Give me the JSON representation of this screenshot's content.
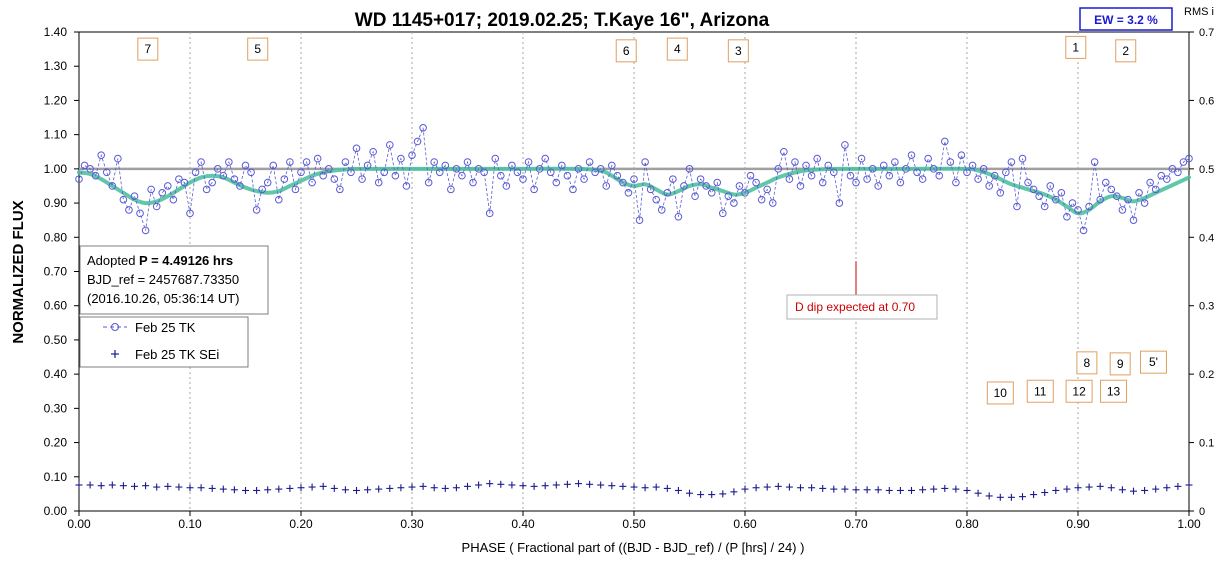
{
  "chart_data": {
    "type": "scatter",
    "title": "WD 1145+017; 2019.02.25; T.Kaye 16\", Arizona",
    "xlabel": "PHASE ( Fractional part of ((BJD - BJD_ref) / (P [hrs] / 24) )",
    "ylabel": "NORMALIZED FLUX",
    "y2label": "RMS i",
    "xlim": [
      0,
      1
    ],
    "ylim": [
      0,
      1.4
    ],
    "y2lim": [
      0,
      0.7
    ],
    "grid": "vertical",
    "x_ticks": [
      "0.00",
      "0.10",
      "0.20",
      "0.30",
      "0.40",
      "0.50",
      "0.60",
      "0.70",
      "0.80",
      "0.90",
      "1.00"
    ],
    "y_ticks": [
      "0.00",
      "0.10",
      "0.20",
      "0.30",
      "0.40",
      "0.50",
      "0.60",
      "0.70",
      "0.80",
      "0.90",
      "1.00",
      "1.10",
      "1.20",
      "1.30",
      "1.40"
    ],
    "y2_ticks": [
      "0",
      "0.1",
      "0.2",
      "0.3",
      "0.4",
      "0.5",
      "0.6",
      "0.7"
    ],
    "reference_line": 1.0,
    "ew_label": "EW =  3.2 %",
    "info_box": {
      "line1_prefix": "Adopted ",
      "line1_bold": "P = 4.49126 hrs",
      "line2": "BJD_ref = 2457687.73350",
      "line3": "(2016.10.26, 05:36:14 UT)"
    },
    "annotation": {
      "text": "D dip expected at 0.70",
      "x": 0.7,
      "y_from": 0.62,
      "y_to": 0.73,
      "color": "#cc0000"
    },
    "legend": {
      "placement": "left-middle",
      "entries": [
        "Feb 25 TK",
        "Feb 25 TK SEi"
      ]
    },
    "dip_labels": [
      {
        "text": "7",
        "x": 0.062,
        "y": 1.35
      },
      {
        "text": "5",
        "x": 0.161,
        "y": 1.35
      },
      {
        "text": "6",
        "x": 0.493,
        "y": 1.345
      },
      {
        "text": "4",
        "x": 0.539,
        "y": 1.35
      },
      {
        "text": "3",
        "x": 0.594,
        "y": 1.345
      },
      {
        "text": "1",
        "x": 0.898,
        "y": 1.355
      },
      {
        "text": "2",
        "x": 0.943,
        "y": 1.345
      },
      {
        "text": "8",
        "x": 0.908,
        "y": 0.433
      },
      {
        "text": "9",
        "x": 0.938,
        "y": 0.43
      },
      {
        "text": "5'",
        "x": 0.968,
        "y": 0.435
      },
      {
        "text": "10",
        "x": 0.83,
        "y": 0.345
      },
      {
        "text": "11",
        "x": 0.866,
        "y": 0.35
      },
      {
        "text": "12",
        "x": 0.901,
        "y": 0.35
      },
      {
        "text": "13",
        "x": 0.932,
        "y": 0.35
      }
    ],
    "series": [
      {
        "name": "Feb 25 TK",
        "color": "#5a5ad6",
        "marker": "open-circle",
        "line": "dashed",
        "x": [
          0.0,
          0.005,
          0.01,
          0.015,
          0.02,
          0.025,
          0.03,
          0.035,
          0.04,
          0.045,
          0.05,
          0.055,
          0.06,
          0.065,
          0.07,
          0.075,
          0.08,
          0.085,
          0.09,
          0.095,
          0.1,
          0.105,
          0.11,
          0.115,
          0.12,
          0.125,
          0.13,
          0.135,
          0.14,
          0.145,
          0.15,
          0.155,
          0.16,
          0.165,
          0.17,
          0.175,
          0.18,
          0.185,
          0.19,
          0.195,
          0.2,
          0.205,
          0.21,
          0.215,
          0.22,
          0.225,
          0.23,
          0.235,
          0.24,
          0.245,
          0.25,
          0.255,
          0.26,
          0.265,
          0.27,
          0.275,
          0.28,
          0.285,
          0.29,
          0.295,
          0.3,
          0.305,
          0.31,
          0.315,
          0.32,
          0.325,
          0.33,
          0.335,
          0.34,
          0.345,
          0.35,
          0.355,
          0.36,
          0.365,
          0.37,
          0.375,
          0.38,
          0.385,
          0.39,
          0.395,
          0.4,
          0.405,
          0.41,
          0.415,
          0.42,
          0.425,
          0.43,
          0.435,
          0.44,
          0.445,
          0.45,
          0.455,
          0.46,
          0.465,
          0.47,
          0.475,
          0.48,
          0.485,
          0.49,
          0.495,
          0.5,
          0.505,
          0.51,
          0.515,
          0.52,
          0.525,
          0.53,
          0.535,
          0.54,
          0.545,
          0.55,
          0.555,
          0.56,
          0.565,
          0.57,
          0.575,
          0.58,
          0.585,
          0.59,
          0.595,
          0.6,
          0.605,
          0.61,
          0.615,
          0.62,
          0.625,
          0.63,
          0.635,
          0.64,
          0.645,
          0.65,
          0.655,
          0.66,
          0.665,
          0.67,
          0.675,
          0.68,
          0.685,
          0.69,
          0.695,
          0.7,
          0.705,
          0.71,
          0.715,
          0.72,
          0.725,
          0.73,
          0.735,
          0.74,
          0.745,
          0.75,
          0.755,
          0.76,
          0.765,
          0.77,
          0.775,
          0.78,
          0.785,
          0.79,
          0.795,
          0.8,
          0.805,
          0.81,
          0.815,
          0.82,
          0.825,
          0.83,
          0.835,
          0.84,
          0.845,
          0.85,
          0.855,
          0.86,
          0.865,
          0.87,
          0.875,
          0.88,
          0.885,
          0.89,
          0.895,
          0.9,
          0.905,
          0.91,
          0.915,
          0.92,
          0.925,
          0.93,
          0.935,
          0.94,
          0.945,
          0.95,
          0.955,
          0.96,
          0.965,
          0.97,
          0.975,
          0.98,
          0.985,
          0.99,
          0.995,
          1.0
        ],
        "y": [
          0.97,
          1.01,
          1.0,
          0.98,
          1.04,
          0.99,
          0.95,
          1.03,
          0.91,
          0.88,
          0.92,
          0.87,
          0.82,
          0.94,
          0.89,
          0.93,
          0.95,
          0.91,
          0.97,
          0.96,
          0.87,
          0.99,
          1.02,
          0.94,
          0.96,
          1.0,
          0.98,
          1.02,
          0.97,
          0.95,
          1.01,
          0.99,
          0.88,
          0.94,
          0.96,
          1.01,
          0.91,
          0.97,
          1.02,
          0.94,
          0.99,
          1.02,
          0.96,
          1.03,
          0.98,
          1.0,
          0.97,
          0.94,
          1.02,
          0.99,
          1.06,
          0.97,
          1.01,
          1.05,
          0.96,
          0.99,
          1.07,
          0.98,
          1.03,
          0.95,
          1.04,
          1.08,
          1.12,
          0.96,
          1.02,
          0.99,
          1.01,
          0.94,
          1.0,
          0.98,
          1.02,
          0.96,
          1.0,
          0.99,
          0.87,
          1.03,
          0.98,
          0.95,
          1.01,
          0.99,
          0.97,
          1.02,
          0.94,
          1.0,
          1.03,
          0.99,
          0.96,
          1.01,
          0.98,
          0.94,
          1.0,
          0.97,
          1.02,
          0.99,
          1.0,
          0.95,
          1.01,
          0.98,
          0.96,
          0.93,
          0.97,
          0.85,
          1.02,
          0.94,
          0.91,
          0.88,
          0.93,
          0.97,
          0.86,
          0.95,
          1.0,
          0.92,
          0.97,
          0.95,
          0.93,
          0.96,
          0.87,
          0.92,
          0.9,
          0.95,
          0.93,
          0.98,
          0.96,
          0.91,
          0.94,
          0.9,
          1.0,
          1.05,
          0.97,
          1.02,
          0.95,
          1.01,
          0.98,
          1.03,
          0.96,
          1.01,
          0.99,
          0.9,
          1.07,
          0.98,
          0.96,
          1.03,
          0.97,
          1.0,
          0.95,
          1.01,
          0.98,
          1.02,
          0.96,
          1.0,
          1.04,
          0.99,
          0.97,
          1.03,
          1.0,
          0.98,
          1.08,
          1.02,
          0.96,
          1.04,
          0.99,
          1.01,
          0.97,
          1.0,
          0.95,
          0.98,
          0.93,
          0.99,
          1.02,
          0.89,
          1.03,
          0.96,
          0.94,
          0.92,
          0.89,
          0.95,
          0.91,
          0.93,
          0.86,
          0.9,
          0.88,
          0.82,
          0.89,
          1.02,
          0.91,
          0.96,
          0.94,
          0.92,
          0.88,
          0.91,
          0.85,
          0.93,
          0.9,
          0.96,
          0.94,
          0.98,
          0.97,
          1.0,
          0.99,
          1.02,
          1.03
        ]
      },
      {
        "name": "Feb 25 TK SEi",
        "color": "#1a1a8c",
        "marker": "plus",
        "axis": "right",
        "x": [
          0.0,
          0.01,
          0.02,
          0.03,
          0.04,
          0.05,
          0.06,
          0.07,
          0.08,
          0.09,
          0.1,
          0.11,
          0.12,
          0.13,
          0.14,
          0.15,
          0.16,
          0.17,
          0.18,
          0.19,
          0.2,
          0.21,
          0.22,
          0.23,
          0.24,
          0.25,
          0.26,
          0.27,
          0.28,
          0.29,
          0.3,
          0.31,
          0.32,
          0.33,
          0.34,
          0.35,
          0.36,
          0.37,
          0.38,
          0.39,
          0.4,
          0.41,
          0.42,
          0.43,
          0.44,
          0.45,
          0.46,
          0.47,
          0.48,
          0.49,
          0.5,
          0.51,
          0.52,
          0.53,
          0.54,
          0.55,
          0.56,
          0.57,
          0.58,
          0.59,
          0.6,
          0.61,
          0.62,
          0.63,
          0.64,
          0.65,
          0.66,
          0.67,
          0.68,
          0.69,
          0.7,
          0.71,
          0.72,
          0.73,
          0.74,
          0.75,
          0.76,
          0.77,
          0.78,
          0.79,
          0.8,
          0.81,
          0.82,
          0.83,
          0.84,
          0.85,
          0.86,
          0.87,
          0.88,
          0.89,
          0.9,
          0.91,
          0.92,
          0.93,
          0.94,
          0.95,
          0.96,
          0.97,
          0.98,
          0.99,
          1.0
        ],
        "y": [
          0.038,
          0.038,
          0.037,
          0.038,
          0.037,
          0.036,
          0.037,
          0.035,
          0.036,
          0.035,
          0.034,
          0.034,
          0.033,
          0.032,
          0.031,
          0.03,
          0.03,
          0.031,
          0.032,
          0.033,
          0.034,
          0.035,
          0.036,
          0.033,
          0.031,
          0.03,
          0.031,
          0.032,
          0.033,
          0.034,
          0.035,
          0.036,
          0.034,
          0.033,
          0.034,
          0.036,
          0.038,
          0.04,
          0.039,
          0.038,
          0.037,
          0.036,
          0.037,
          0.038,
          0.039,
          0.04,
          0.039,
          0.038,
          0.037,
          0.036,
          0.035,
          0.034,
          0.035,
          0.033,
          0.03,
          0.026,
          0.024,
          0.024,
          0.025,
          0.028,
          0.032,
          0.034,
          0.035,
          0.036,
          0.035,
          0.034,
          0.034,
          0.033,
          0.032,
          0.032,
          0.031,
          0.031,
          0.031,
          0.03,
          0.03,
          0.03,
          0.031,
          0.032,
          0.033,
          0.032,
          0.03,
          0.026,
          0.022,
          0.02,
          0.02,
          0.021,
          0.024,
          0.027,
          0.03,
          0.032,
          0.034,
          0.035,
          0.036,
          0.034,
          0.031,
          0.029,
          0.03,
          0.032,
          0.034,
          0.036,
          0.038
        ]
      },
      {
        "name": "model",
        "color": "#4fc1a0",
        "line": "thick-solid",
        "x": [
          0.0,
          0.01,
          0.02,
          0.03,
          0.04,
          0.05,
          0.06,
          0.07,
          0.08,
          0.09,
          0.1,
          0.11,
          0.12,
          0.13,
          0.14,
          0.15,
          0.16,
          0.17,
          0.18,
          0.19,
          0.2,
          0.21,
          0.22,
          0.23,
          0.24,
          0.25,
          0.3,
          0.35,
          0.4,
          0.45,
          0.47,
          0.48,
          0.49,
          0.5,
          0.51,
          0.52,
          0.53,
          0.54,
          0.55,
          0.56,
          0.57,
          0.58,
          0.59,
          0.6,
          0.61,
          0.62,
          0.63,
          0.64,
          0.65,
          0.66,
          0.67,
          0.68,
          0.69,
          0.7,
          0.75,
          0.8,
          0.81,
          0.82,
          0.83,
          0.84,
          0.85,
          0.86,
          0.87,
          0.88,
          0.89,
          0.9,
          0.91,
          0.92,
          0.93,
          0.94,
          0.95,
          0.96,
          0.97,
          0.98,
          0.99,
          1.0
        ],
        "y": [
          0.99,
          0.985,
          0.97,
          0.95,
          0.93,
          0.91,
          0.9,
          0.905,
          0.92,
          0.94,
          0.96,
          0.975,
          0.98,
          0.975,
          0.96,
          0.945,
          0.935,
          0.93,
          0.935,
          0.95,
          0.965,
          0.98,
          0.99,
          0.995,
          0.998,
          1.0,
          1.0,
          1.0,
          1.0,
          1.0,
          0.995,
          0.98,
          0.96,
          0.95,
          0.955,
          0.94,
          0.925,
          0.935,
          0.95,
          0.955,
          0.945,
          0.935,
          0.925,
          0.93,
          0.945,
          0.96,
          0.975,
          0.985,
          0.993,
          0.997,
          0.999,
          1.0,
          1.0,
          1.0,
          1.0,
          1.0,
          0.995,
          0.985,
          0.97,
          0.955,
          0.945,
          0.935,
          0.925,
          0.91,
          0.89,
          0.87,
          0.88,
          0.905,
          0.92,
          0.915,
          0.905,
          0.915,
          0.93,
          0.945,
          0.96,
          0.975
        ]
      }
    ]
  }
}
